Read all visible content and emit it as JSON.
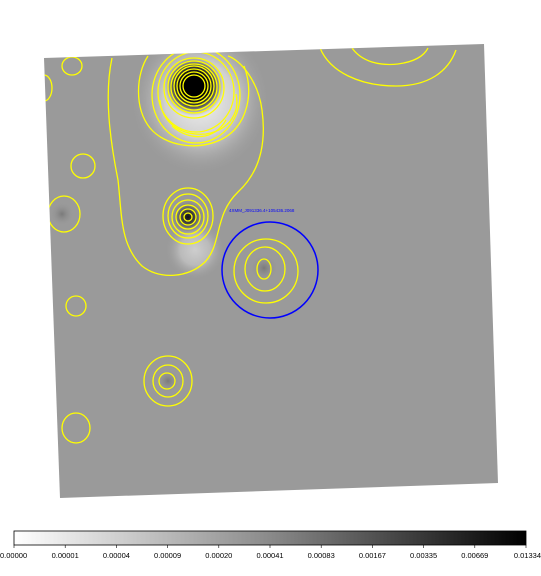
{
  "image": {
    "source_label": "4XMM_J091336.4+105436.2068",
    "colors": {
      "background": "#9a9a9a",
      "contour": "#ffff00",
      "region": "#0000ff",
      "source_label": "#0000ff"
    }
  },
  "colorbar": {
    "ticks": [
      "0.00000",
      "0.00001",
      "0.00004",
      "0.00009",
      "0.00020",
      "0.00041",
      "0.00083",
      "0.00167",
      "0.00335",
      "0.00669",
      "0.01334"
    ]
  }
}
